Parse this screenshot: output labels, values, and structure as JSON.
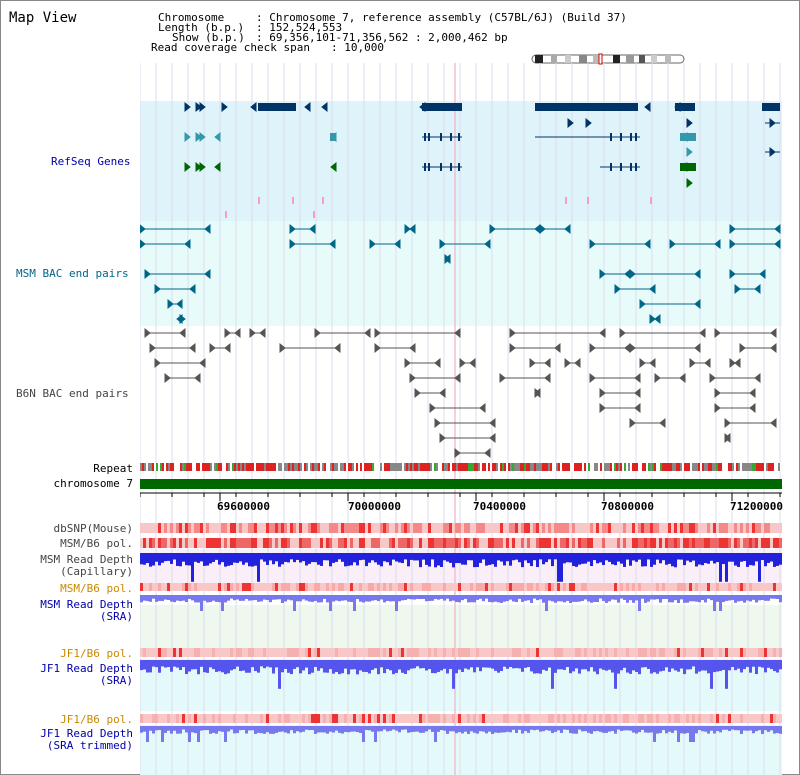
{
  "page": {
    "title": "Map View"
  },
  "info": {
    "chromosome_label": "Chromosome",
    "chromosome_value": ": Chromosome 7, reference assembly (C57BL/6J) (Build 37)",
    "length_label": "Length (b.p.)",
    "length_value": ": 152,524,553",
    "show_label": "Show (b.p.)",
    "show_value": ": 69,356,101-71,356,562 : 2,000,462 bp",
    "coverage_label": "Read coverage check span",
    "coverage_value": ": 10,000"
  },
  "tracks": {
    "refseq": "RefSeq Genes",
    "msm_bac": "MSM BAC end pairs",
    "b6n_bac": "B6N BAC end pairs",
    "repeat": "Repeat",
    "chromosome": "chromosome 7",
    "dbsnp": "dbSNP(Mouse)",
    "msm_b6_pol_1": "MSM/B6 pol.",
    "msm_depth_cap_1": "MSM Read Depth",
    "msm_depth_cap_2": "(Capillary)",
    "msm_b6_pol_2": "MSM/B6 pol.",
    "msm_depth_sra_1": "MSM Read Depth",
    "msm_depth_sra_2": "(SRA)",
    "jf1_b6_pol_1": "JF1/B6 pol.",
    "jf1_depth_1": "JF1 Read Depth",
    "jf1_depth_2": "(SRA)",
    "jf1_b6_pol_2": "JF1/B6 pol.",
    "jf1_trim_1": "JF1 Read Depth",
    "jf1_trim_2": "(SRA trimmed)"
  },
  "axis": {
    "ticks": [
      "69600000",
      "70000000",
      "70400000",
      "70800000",
      "71200000"
    ]
  },
  "colors": {
    "refseq_bg": "#dff3fb",
    "msm_bac_bg": "#e8fbfb",
    "gene_dark": "#003366",
    "gene_light": "#3399aa",
    "gene_green": "#006600",
    "bac_teal": "#006688",
    "bac_grey": "#555555",
    "chrom_bar": "#006600",
    "depth_blue": "#2222dd",
    "sra_blue": "#7777ee",
    "pol_red": "#ee5555"
  }
}
